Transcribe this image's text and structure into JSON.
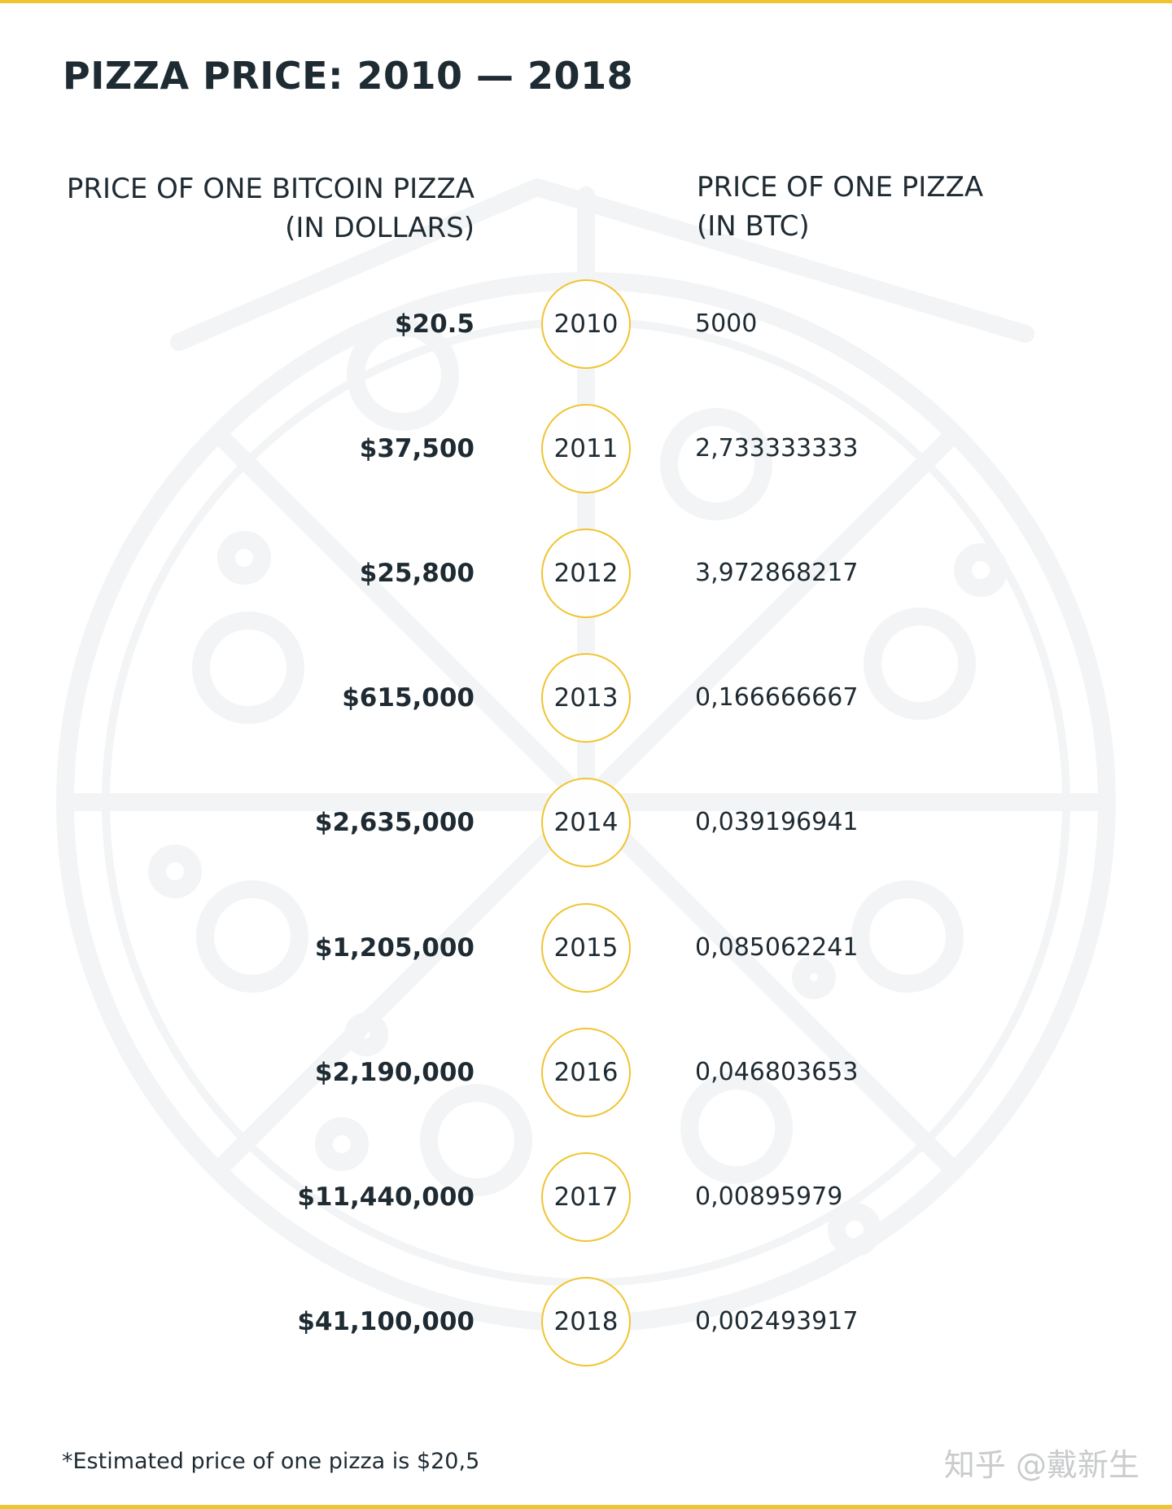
{
  "colors": {
    "accent": "#f0c430",
    "text": "#1f2b33",
    "watermark_art": "#f3f4f5"
  },
  "page": {
    "title": "PIZZA PRICE: 2010 — 2018",
    "footnote": "*Estimated price of one pizza is $20,5",
    "watermark": "知乎 @戴新生"
  },
  "chart_data": {
    "type": "table",
    "title": "PIZZA PRICE: 2010 — 2018",
    "columns": [
      "PRICE OF ONE BITCOIN PIZZA\n(IN DOLLARS)",
      "PRICE OF ONE PIZZA\n(IN BTC)"
    ],
    "years": [
      "2010",
      "2011",
      "2012",
      "2013",
      "2014",
      "2015",
      "2016",
      "2017",
      "2018"
    ],
    "usd_labels": [
      "$20.5",
      "$37,500",
      "$25,800",
      "$615,000",
      "$2,635,000",
      "$1,205,000",
      "$2,190,000",
      "$11,440,000",
      "$41,100,000"
    ],
    "btc_labels": [
      "5000",
      "2,733333333",
      "3,972868217",
      "0,166666667",
      "0,039196941",
      "0,085062241",
      "0,046803653",
      "0,00895979",
      "0,002493917"
    ],
    "usd_values": [
      20.5,
      37500,
      25800,
      615000,
      2635000,
      1205000,
      2190000,
      11440000,
      41100000
    ],
    "btc_values": [
      5000,
      2.733333333,
      3.972868217,
      0.166666667,
      0.039196941,
      0.085062241,
      0.046803653,
      0.00895979,
      0.002493917
    ]
  }
}
